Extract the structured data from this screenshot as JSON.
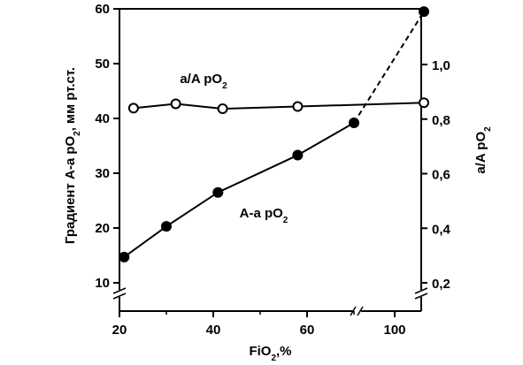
{
  "chart_data": {
    "type": "line",
    "xlabel": "FiO2, %",
    "ylabel_left": "Градиент А-а pO2, мм рт.ст.",
    "ylabel_right": "a/A pO2",
    "x_ticks": [
      "20",
      "40",
      "60",
      "100"
    ],
    "y_left_ticks": [
      "10",
      "20",
      "30",
      "40",
      "50",
      "60"
    ],
    "y_right_ticks": [
      "0,2",
      "0,4",
      "0,6",
      "0,8",
      "1,0"
    ],
    "x_break_between": [
      70,
      100
    ],
    "y_left_range": [
      10,
      60
    ],
    "y_right_range": [
      0.2,
      1.0
    ],
    "series": [
      {
        "name": "A-a pO2",
        "axis": "left",
        "marker": "filled-circle",
        "x": [
          21,
          30,
          41,
          58,
          70,
          105
        ],
        "values": [
          14.7,
          20.3,
          26.5,
          33.3,
          39.2,
          59.5
        ]
      },
      {
        "name": "a/A pO2",
        "axis": "right",
        "marker": "open-circle",
        "x": [
          23,
          32,
          42,
          58,
          105
        ],
        "values": [
          0.84,
          0.856,
          0.838,
          0.846,
          0.86
        ]
      }
    ],
    "legend_placement": "inline labels",
    "grid": false
  }
}
